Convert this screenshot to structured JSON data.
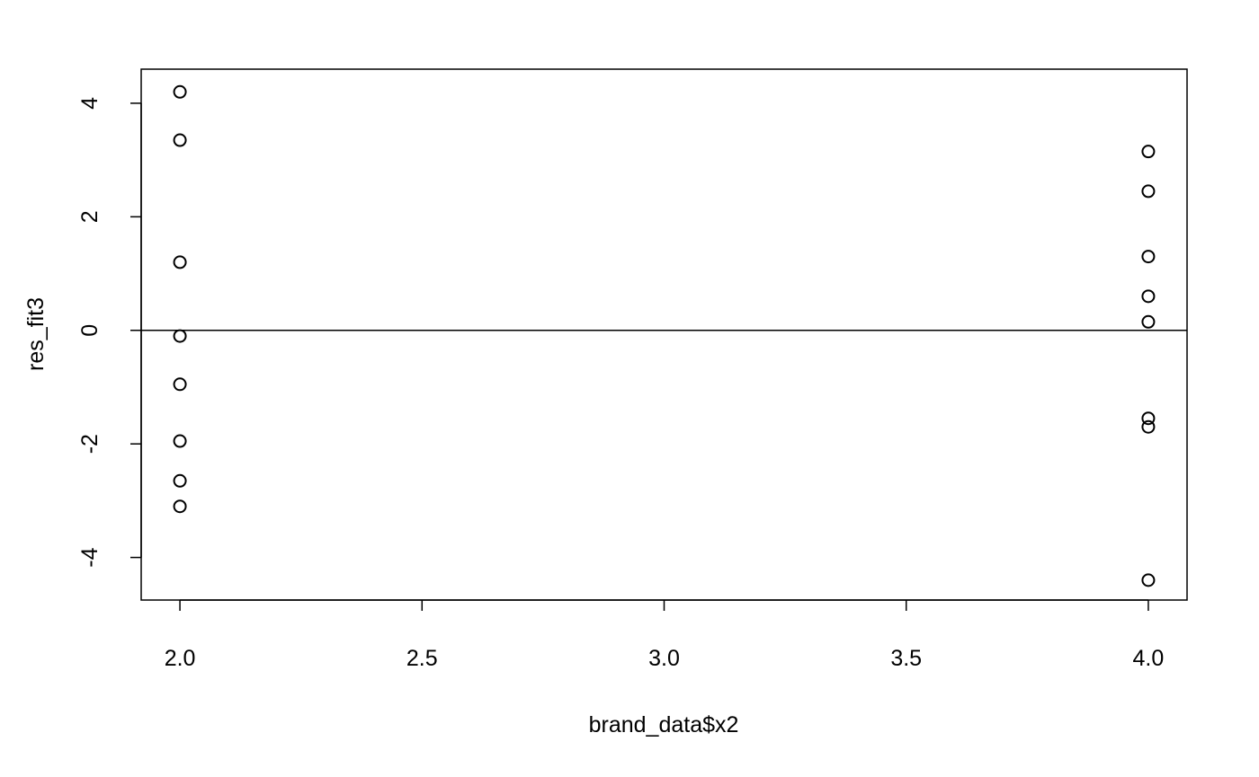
{
  "chart_data": {
    "type": "scatter",
    "title": "",
    "xlabel": "brand_data$x2",
    "ylabel": "res_fit3",
    "xlim": [
      1.92,
      4.08
    ],
    "ylim": [
      -4.75,
      4.6
    ],
    "x_ticks": [
      2.0,
      2.5,
      3.0,
      3.5,
      4.0
    ],
    "x_tick_labels": [
      "2.0",
      "2.5",
      "3.0",
      "3.5",
      "4.0"
    ],
    "y_ticks": [
      -4,
      -2,
      0,
      2,
      4
    ],
    "y_tick_labels": [
      "-4",
      "-2",
      "0",
      "2",
      "4"
    ],
    "grid": false,
    "legend": "none",
    "reference_line": {
      "orientation": "horizontal",
      "y": 0
    },
    "series": [
      {
        "marker": "open-circle",
        "x": [
          2,
          2,
          2,
          2,
          2,
          2,
          2,
          2,
          4,
          4,
          4,
          4,
          4,
          4,
          4,
          4
        ],
        "y": [
          4.2,
          3.35,
          1.2,
          -0.1,
          -0.95,
          -1.95,
          -2.65,
          -3.1,
          3.15,
          2.45,
          1.3,
          0.6,
          0.15,
          -1.55,
          -1.7,
          -4.4
        ]
      }
    ],
    "colors": {
      "points": "#000000",
      "axes": "#000000",
      "background": "#ffffff"
    }
  }
}
